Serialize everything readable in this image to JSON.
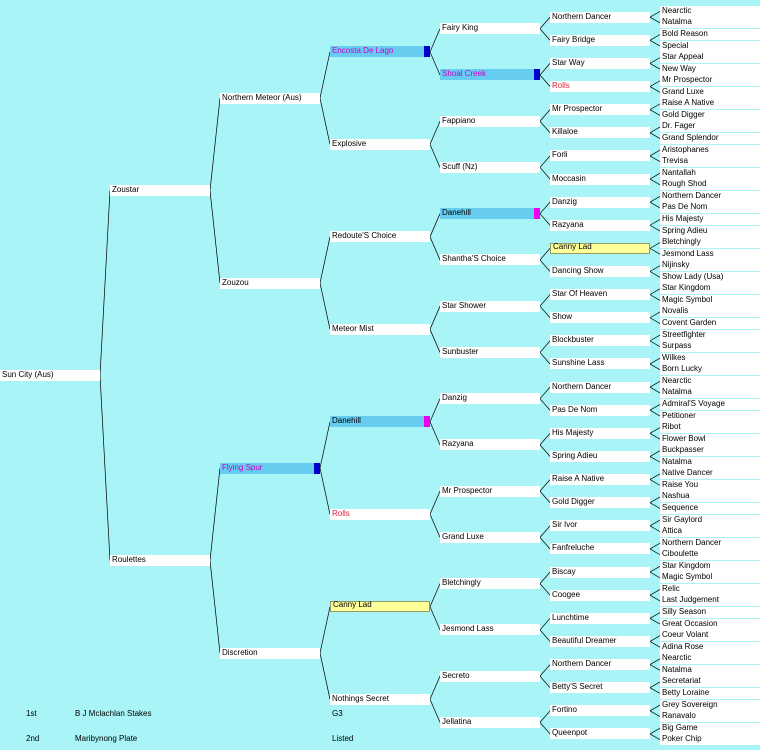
{
  "colors": {
    "background": "#a8f4f6",
    "box": "#ffffff",
    "blue_fill": "#66ccf0",
    "yellow_fill": "#ffff99",
    "magenta_text": "#cc00cc",
    "red_text": "#e0203a",
    "dark_blue_tag": "#0000cc",
    "magenta_tag": "#ee00ee"
  },
  "pedigree": {
    "g0": [
      "Sun City (Aus)"
    ],
    "g1": [
      "Zoustar",
      "Roulettes"
    ],
    "g2": [
      "Northern Meteor (Aus)",
      "Zouzou",
      "Flying Spur",
      "Discretion"
    ],
    "g3": [
      "Encosta De Lago",
      "Explosive",
      "Redoute'S Choice",
      "Meteor Mist",
      "Danehill",
      "Rolls",
      "Canny Lad",
      "Nothings Secret"
    ],
    "g4": [
      "Fairy King",
      "Shoal Creek",
      "Fappiano",
      "Scuff (Nz)",
      "Danehill",
      "Shantha'S Choice",
      "Star Shower",
      "Sunbuster",
      "Danzig",
      "Razyana",
      "Mr Prospector",
      "Grand Luxe",
      "Bletchingly",
      "Jesmond Lass",
      "Secreto",
      "Jellatina"
    ],
    "g5": [
      "Northern Dancer",
      "Fairy Bridge",
      "Star Way",
      "Rolls",
      "Mr Prospector",
      "Killaloe",
      "Forli",
      "Moccasin",
      "Danzig",
      "Razyana",
      "Canny Lad",
      "Dancing Show",
      "Star Of Heaven",
      "Show",
      "Blockbuster",
      "Sunshine Lass",
      "Northern Dancer",
      "Pas De Nom",
      "His Majesty",
      "Spring Adieu",
      "Raise A Native",
      "Gold Digger",
      "Sir Ivor",
      "Fanfreluche",
      "Biscay",
      "Coogee",
      "Lunchtime",
      "Beautiful Dreamer",
      "Northern Dancer",
      "Betty'S Secret",
      "Fortino",
      "Queenpot"
    ],
    "g6": [
      "Nearctic",
      "Natalma",
      "Bold Reason",
      "Special",
      "Star Appeal",
      "New Way",
      "Mr Prospector",
      "Grand Luxe",
      "Raise A Native",
      "Gold Digger",
      "Dr. Fager",
      "Grand Splendor",
      "Aristophanes",
      "Trevisa",
      "Nantallah",
      "Rough Shod",
      "Northern Dancer",
      "Pas De Nom",
      "His Majesty",
      "Spring Adieu",
      "Bletchingly",
      "Jesmond Lass",
      "Nijinsky",
      "Show Lady (Usa)",
      "Star Kingdom",
      "Magic Symbol",
      "Novalis",
      "Covent Garden",
      "Streetfighter",
      "Surpass",
      "Wilkes",
      "Born Lucky",
      "Nearctic",
      "Natalma",
      "Admiral'S Voyage",
      "Petitioner",
      "Ribot",
      "Flower Bowl",
      "Buckpasser",
      "Natalma",
      "Native Dancer",
      "Raise You",
      "Nashua",
      "Sequence",
      "Sir Gaylord",
      "Attica",
      "Northern Dancer",
      "Ciboulette",
      "Star Kingdom",
      "Magic Symbol",
      "Relic",
      "Last Judgement",
      "Silly Season",
      "Great Occasion",
      "Coeur Volant",
      "Adina Rose",
      "Nearctic",
      "Natalma",
      "Secretariat",
      "Betty Loraine",
      "Grey Sovereign",
      "Ranavalo",
      "Big Game",
      "Poker Chip"
    ]
  },
  "highlights": [
    {
      "gen": 3,
      "index": 0,
      "fill": "blue",
      "text": "magenta",
      "tag": "dark_blue_tag"
    },
    {
      "gen": 4,
      "index": 1,
      "fill": "blue",
      "text": "magenta",
      "tag": "dark_blue_tag"
    },
    {
      "gen": 5,
      "index": 3,
      "text": "red"
    },
    {
      "gen": 4,
      "index": 4,
      "fill": "blue",
      "tag": "magenta_tag"
    },
    {
      "gen": 5,
      "index": 10,
      "fill": "yellow"
    },
    {
      "gen": 2,
      "index": 2,
      "fill": "blue",
      "text": "magenta",
      "tag": "dark_blue_tag"
    },
    {
      "gen": 3,
      "index": 4,
      "fill": "blue",
      "tag": "magenta_tag"
    },
    {
      "gen": 3,
      "index": 5,
      "text": "red"
    },
    {
      "gen": 3,
      "index": 6,
      "fill": "yellow"
    }
  ],
  "footer": [
    {
      "place": "1st",
      "race": "B J Mclachlan Stakes",
      "grade": "G3"
    },
    {
      "place": "2nd",
      "race": "Maribynong Plate",
      "grade": "Listed"
    }
  ]
}
